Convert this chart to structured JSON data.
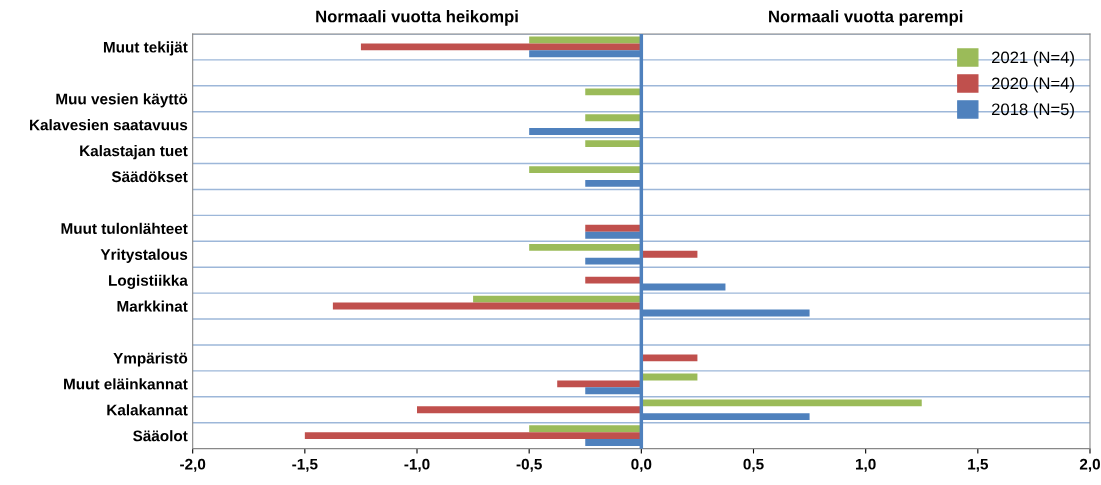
{
  "chart_data": {
    "type": "bar",
    "orientation": "horizontal",
    "categories": [
      "Muut tekijät",
      null,
      "Muu vesien käyttö",
      "Kalavesien saatavuus",
      "Kalastajan tuet",
      "Säädökset",
      null,
      "Muut tulonlähteet",
      "Yritystalous",
      "Logistiikka",
      "Markkinat",
      null,
      "Ympäristö",
      "Muut eläinkannat",
      "Kalakannat",
      "Sääolot"
    ],
    "series": [
      {
        "name": "2021 (N=4)",
        "color": "#9bbb59",
        "values": [
          -0.5,
          0,
          -0.25,
          -0.25,
          -0.25,
          -0.5,
          0,
          0,
          -0.5,
          0,
          -0.75,
          0,
          0,
          0.25,
          1.25,
          -0.5
        ]
      },
      {
        "name": "2020 (N=4)",
        "color": "#c0504d",
        "values": [
          -1.25,
          0,
          0,
          0,
          0,
          0,
          0,
          -0.25,
          0.25,
          -0.25,
          -1.375,
          0,
          0.25,
          -0.375,
          -1.0,
          -1.5
        ]
      },
      {
        "name": "2018 (N=5)",
        "color": "#4f81bd",
        "values": [
          -0.5,
          0,
          0,
          -0.5,
          0,
          -0.25,
          0,
          -0.25,
          -0.25,
          0.375,
          0.75,
          0,
          0,
          -0.25,
          0.75,
          -0.25
        ]
      }
    ],
    "xlim": [
      -2.0,
      2.0
    ],
    "xticks": [
      {
        "value": -2.0,
        "label": "-2,0"
      },
      {
        "value": -1.5,
        "label": "-1,5"
      },
      {
        "value": -1.0,
        "label": "-1,0"
      },
      {
        "value": -0.5,
        "label": "-0,5"
      },
      {
        "value": 0.0,
        "label": "0,0"
      },
      {
        "value": 0.5,
        "label": "0,5"
      },
      {
        "value": 1.0,
        "label": "1,0"
      },
      {
        "value": 1.5,
        "label": "1,5"
      },
      {
        "value": 2.0,
        "label": "2,0"
      }
    ],
    "annotations": [
      "Normaali vuotta heikompi",
      "Normaali vuotta parempi"
    ],
    "ref_lines": [
      {
        "axis": "x",
        "value": 0,
        "color": "#4f81bd"
      }
    ],
    "grid": "y",
    "legend": "top right"
  }
}
